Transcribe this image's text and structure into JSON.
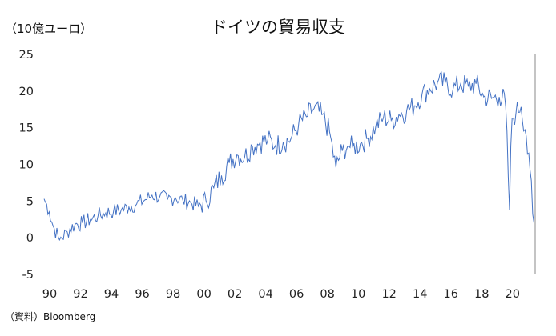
{
  "unit_label": "（10億ユーロ）",
  "source_label": "（資料）Bloomberg",
  "chart_data": {
    "type": "line",
    "title": "ドイツの貿易収支",
    "xlabel": "",
    "ylabel": "（10億ユーロ）",
    "grid": false,
    "legend": "none",
    "ylim": [
      -5,
      25
    ],
    "xlim": [
      1990,
      2021.83
    ],
    "y_ticks": [
      "25",
      "20",
      "15",
      "10",
      "5",
      "0",
      "-5"
    ],
    "x_ticks": [
      "90",
      "92",
      "94",
      "96",
      "98",
      "00",
      "02",
      "04",
      "06",
      "08",
      "10",
      "12",
      "14",
      "16",
      "18",
      "20"
    ],
    "color": "#4472C4",
    "series": [
      {
        "name": "",
        "x": [
          1990.0,
          1990.3,
          1990.6,
          1990.9,
          1991.0,
          1991.5,
          1992.0,
          1992.5,
          1993.0,
          1993.5,
          1994.0,
          1994.5,
          1995.0,
          1995.5,
          1996.0,
          1996.5,
          1997.0,
          1997.5,
          1998.0,
          1998.5,
          1999.0,
          1999.5,
          2000.0,
          2000.5,
          2001.0,
          2001.5,
          2002.0,
          2002.5,
          2003.0,
          2003.5,
          2004.0,
          2004.5,
          2005.0,
          2005.5,
          2006.0,
          2006.5,
          2007.0,
          2007.5,
          2008.0,
          2008.5,
          2008.9,
          2009.3,
          2009.7,
          2010.0,
          2010.5,
          2011.0,
          2011.5,
          2012.0,
          2012.5,
          2013.0,
          2013.5,
          2014.0,
          2014.5,
          2015.0,
          2015.5,
          2016.0,
          2016.5,
          2017.0,
          2017.5,
          2018.0,
          2018.5,
          2019.0,
          2019.5,
          2019.9,
          2020.17,
          2020.3,
          2020.6,
          2020.9,
          2021.0,
          2021.2,
          2021.4,
          2021.5,
          2021.6,
          2021.67,
          2021.75,
          2021.83
        ],
        "values": [
          5.3,
          3.8,
          1.5,
          0.2,
          -0.3,
          0.8,
          1.8,
          2.0,
          2.5,
          3.0,
          3.4,
          3.6,
          3.8,
          4.2,
          4.6,
          5.1,
          5.8,
          5.6,
          5.2,
          5.5,
          5.1,
          4.8,
          4.3,
          5.0,
          6.8,
          8.5,
          10.2,
          11.3,
          11.0,
          12.5,
          13.0,
          13.3,
          12.6,
          13.0,
          13.5,
          15.5,
          16.5,
          17.6,
          16.8,
          14.5,
          9.5,
          11.8,
          12.5,
          12.3,
          12.8,
          13.6,
          15.2,
          16.4,
          16.0,
          16.8,
          17.3,
          18.0,
          19.6,
          20.3,
          21.2,
          21.1,
          20.2,
          21.0,
          20.6,
          21.0,
          19.2,
          19.0,
          19.2,
          18.8,
          3.6,
          16.2,
          17.0,
          18.2,
          16.0,
          14.5,
          12.0,
          9.2,
          7.5,
          3.0,
          2.0,
          -1.5
        ]
      }
    ]
  }
}
